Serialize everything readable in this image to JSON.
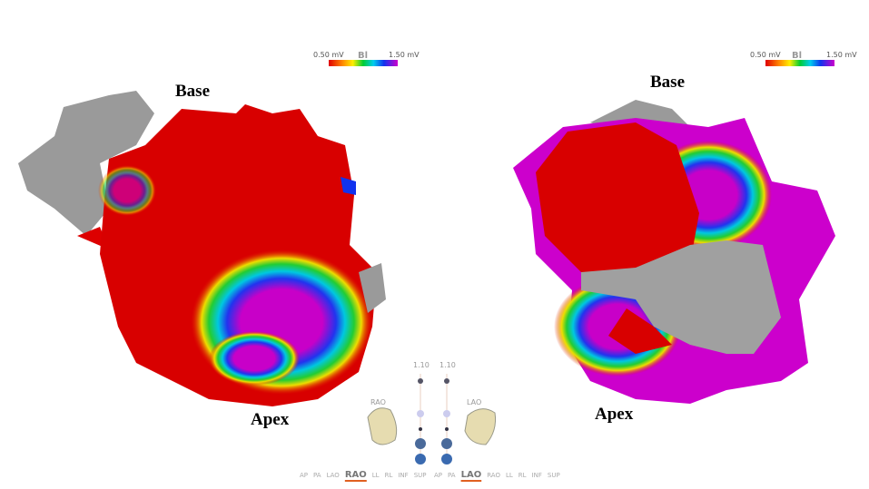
{
  "left_panel": {
    "legend": {
      "min": "0.50 mV",
      "label": "Bl",
      "max": "1.50 mV"
    },
    "top_label": "Base",
    "bottom_label": "Apex"
  },
  "right_panel": {
    "legend": {
      "min": "0.50 mV",
      "label": "Bl",
      "max": "1.50 mV"
    },
    "top_label": "Base",
    "bottom_label": "Apex"
  },
  "view_control": {
    "left": {
      "zoom": "1.10",
      "orientation": "RAO",
      "buttons": [
        "AP",
        "PA",
        "LAO",
        "RAO",
        "LL",
        "RL",
        "INF",
        "SUP"
      ]
    },
    "right": {
      "zoom": "1.10",
      "orientation": "LAO",
      "buttons": [
        "AP",
        "PA",
        "LAO",
        "RAO",
        "LL",
        "RL",
        "INF",
        "SUP"
      ]
    }
  }
}
